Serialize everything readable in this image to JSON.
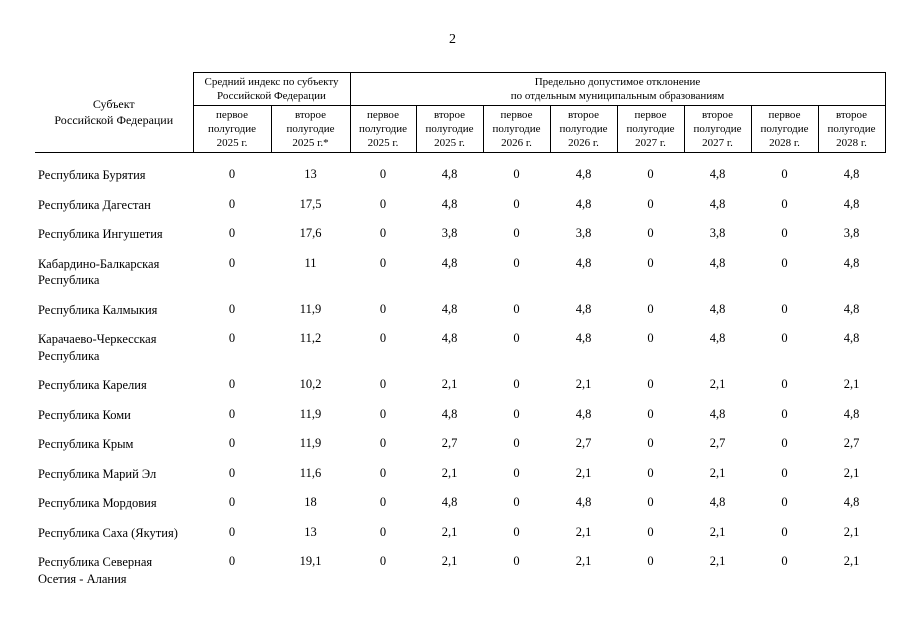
{
  "page": {
    "number": "2"
  },
  "table": {
    "col1_header": "Субъект\nРоссийской Федерации",
    "group1_header": "Средний индекс по субъекту\nРоссийской Федерации",
    "group2_header": "Предельно допустимое отклонение\nпо отдельным муниципальным образованиям",
    "sub_headers": [
      "первое\nполугодие\n2025 г.",
      "второе\nполугодие\n2025 г.*",
      "первое\nполугодие\n2025 г.",
      "второе\nполугодие\n2025 г.",
      "первое\nполугодие\n2026 г.",
      "второе\nполугодие\n2026 г.",
      "первое\nполугодие\n2027 г.",
      "второе\nполугодие\n2027 г.",
      "первое\nполугодие\n2028 г.",
      "второе\nполугодие\n2028 г."
    ],
    "rows": [
      {
        "name": "Республика Бурятия",
        "values": [
          "0",
          "13",
          "0",
          "4,8",
          "0",
          "4,8",
          "0",
          "4,8",
          "0",
          "4,8"
        ]
      },
      {
        "name": "Республика Дагестан",
        "values": [
          "0",
          "17,5",
          "0",
          "4,8",
          "0",
          "4,8",
          "0",
          "4,8",
          "0",
          "4,8"
        ]
      },
      {
        "name": "Республика Ингушетия",
        "values": [
          "0",
          "17,6",
          "0",
          "3,8",
          "0",
          "3,8",
          "0",
          "3,8",
          "0",
          "3,8"
        ]
      },
      {
        "name": "Кабардино-Балкарская Республика",
        "values": [
          "0",
          "11",
          "0",
          "4,8",
          "0",
          "4,8",
          "0",
          "4,8",
          "0",
          "4,8"
        ]
      },
      {
        "name": "Республика Калмыкия",
        "values": [
          "0",
          "11,9",
          "0",
          "4,8",
          "0",
          "4,8",
          "0",
          "4,8",
          "0",
          "4,8"
        ]
      },
      {
        "name": "Карачаево-Черкесская Республика",
        "values": [
          "0",
          "11,2",
          "0",
          "4,8",
          "0",
          "4,8",
          "0",
          "4,8",
          "0",
          "4,8"
        ]
      },
      {
        "name": "Республика Карелия",
        "values": [
          "0",
          "10,2",
          "0",
          "2,1",
          "0",
          "2,1",
          "0",
          "2,1",
          "0",
          "2,1"
        ]
      },
      {
        "name": "Республика Коми",
        "values": [
          "0",
          "11,9",
          "0",
          "4,8",
          "0",
          "4,8",
          "0",
          "4,8",
          "0",
          "4,8"
        ]
      },
      {
        "name": "Республика Крым",
        "values": [
          "0",
          "11,9",
          "0",
          "2,7",
          "0",
          "2,7",
          "0",
          "2,7",
          "0",
          "2,7"
        ]
      },
      {
        "name": "Республика Марий Эл",
        "values": [
          "0",
          "11,6",
          "0",
          "2,1",
          "0",
          "2,1",
          "0",
          "2,1",
          "0",
          "2,1"
        ]
      },
      {
        "name": "Республика Мордовия",
        "values": [
          "0",
          "18",
          "0",
          "4,8",
          "0",
          "4,8",
          "0",
          "4,8",
          "0",
          "4,8"
        ]
      },
      {
        "name": "Республика Саха (Якутия)",
        "values": [
          "0",
          "13",
          "0",
          "2,1",
          "0",
          "2,1",
          "0",
          "2,1",
          "0",
          "2,1"
        ]
      },
      {
        "name": "Республика Северная Осетия - Алания",
        "values": [
          "0",
          "19,1",
          "0",
          "2,1",
          "0",
          "2,1",
          "0",
          "2,1",
          "0",
          "2,1"
        ]
      }
    ]
  }
}
